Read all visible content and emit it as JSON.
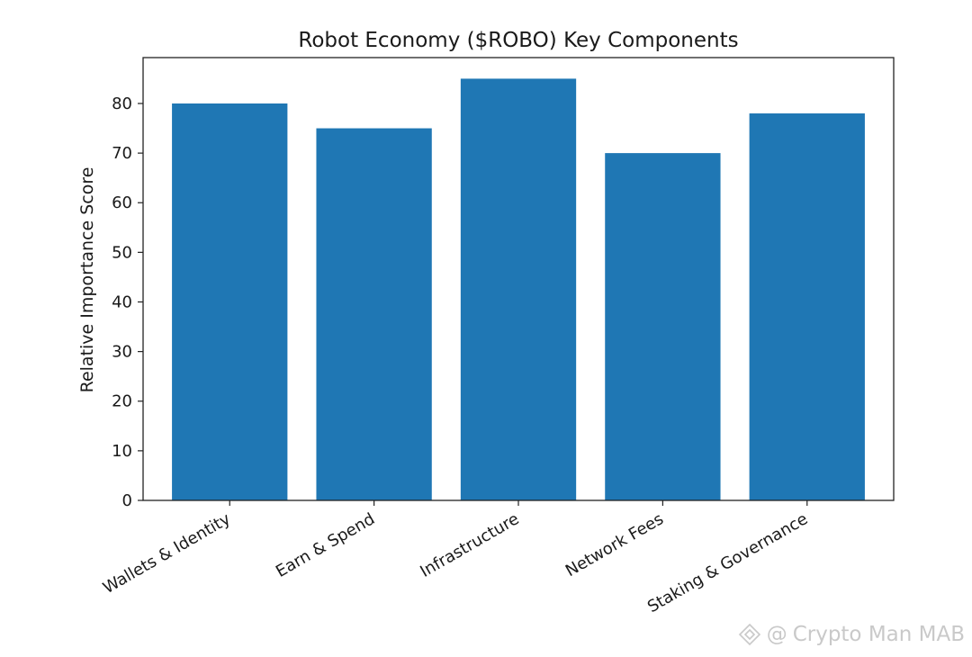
{
  "chart_data": {
    "type": "bar",
    "title": "Robot Economy ($ROBO) Key Components",
    "xlabel": "",
    "ylabel": "Relative Importance Score",
    "categories": [
      "Wallets & Identity",
      "Earn & Spend",
      "Infrastructure",
      "Network Fees",
      "Staking & Governance"
    ],
    "values": [
      80,
      75,
      85,
      70,
      78
    ],
    "ylim": [
      0,
      89.25
    ],
    "yticks": [
      0,
      10,
      20,
      30,
      40,
      50,
      60,
      70,
      80
    ],
    "grid": false,
    "legend": "none",
    "bar_color": "#1f77b4"
  },
  "watermark": {
    "at_symbol": "@",
    "text": "Crypto Man MAB",
    "icon": "binance-diamond-logo",
    "color": "#c9c9c9"
  }
}
